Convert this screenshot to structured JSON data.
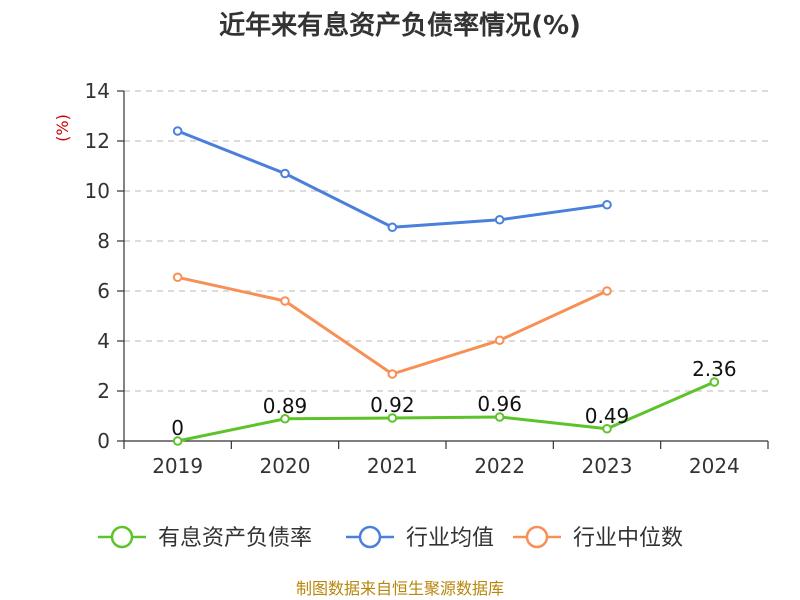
{
  "chart_data": {
    "type": "line",
    "title": "近年来有息资产负债率情况(%)",
    "ylabel": "(%)",
    "xlabel": "",
    "categories": [
      "2019",
      "2020",
      "2021",
      "2022",
      "2023",
      "2024"
    ],
    "ylim": [
      0,
      14
    ],
    "yticks": [
      0,
      2,
      4,
      6,
      8,
      10,
      12,
      14
    ],
    "grid": true,
    "legend_position": "bottom",
    "series": [
      {
        "name": "有息资产负债率",
        "color": "#5dc32a",
        "values": [
          0,
          0.89,
          0.92,
          0.96,
          0.49,
          2.36
        ],
        "labels": [
          "0",
          "0.89",
          "0.92",
          "0.96",
          "0.49",
          "2.36"
        ]
      },
      {
        "name": "行业均值",
        "color": "#4a7fdb",
        "values": [
          12.4,
          10.7,
          8.55,
          8.85,
          9.45,
          null
        ]
      },
      {
        "name": "行业中位数",
        "color": "#f79055",
        "values": [
          6.55,
          5.6,
          2.68,
          4.03,
          6.0,
          null
        ]
      }
    ]
  },
  "source": "制图数据来自恒生聚源数据库"
}
